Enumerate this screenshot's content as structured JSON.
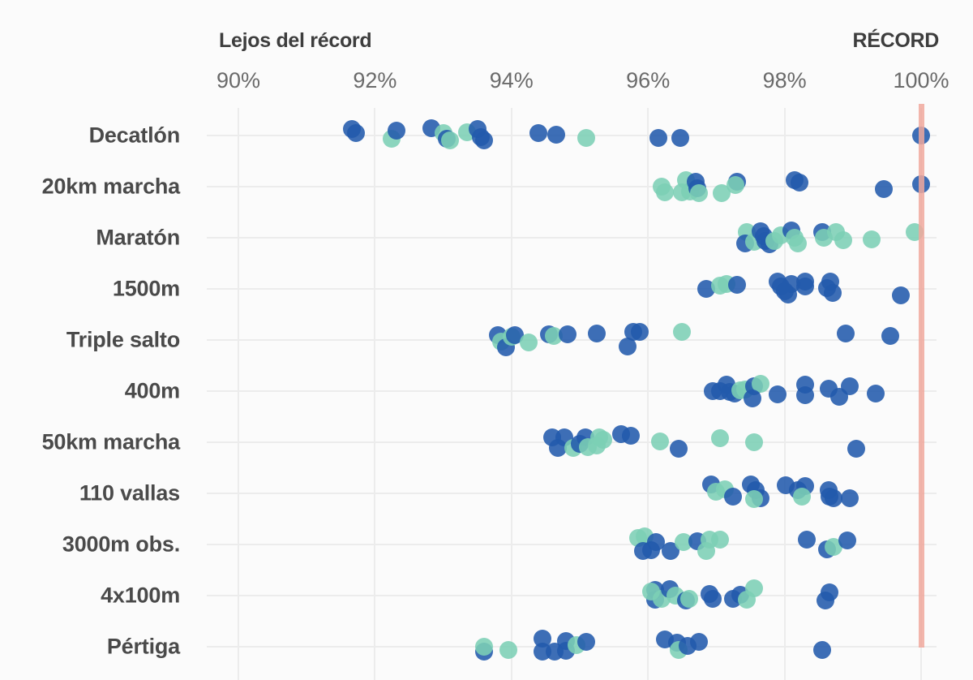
{
  "header": {
    "left_label": "Lejos del récord",
    "right_label": "RÉCORD"
  },
  "colors": {
    "series_dark": "#225aac",
    "series_light": "#7ccfb5",
    "record_line": "#f0a89c",
    "grid": "#ececec",
    "background": "#fbfbfb"
  },
  "chart_data": {
    "type": "scatter",
    "title": "",
    "xlabel": "",
    "ylabel": "",
    "xlim": [
      89.5,
      100.2
    ],
    "x_ticks": [
      {
        "value": 90,
        "label": "90%"
      },
      {
        "value": 92,
        "label": "92%"
      },
      {
        "value": 94,
        "label": "94%"
      },
      {
        "value": 96,
        "label": "96%"
      },
      {
        "value": 98,
        "label": "98%"
      },
      {
        "value": 100,
        "label": "100%"
      }
    ],
    "annotations": [
      {
        "text": "Lejos del récord",
        "position": "top-left"
      },
      {
        "text": "RÉCORD",
        "position": "top-right",
        "x": 100
      }
    ],
    "reference_line": {
      "x": 100,
      "label": "RÉCORD"
    },
    "grid": true,
    "legend": "none",
    "series_names": [
      "dark",
      "light"
    ],
    "categories": [
      "Decatlón",
      "20km marcha",
      "Maratón",
      "1500m",
      "Triple salto",
      "400m",
      "50km marcha",
      "110 vallas",
      "3000m obs.",
      "4x100m",
      "Pértiga"
    ],
    "rows": [
      {
        "label": "Decatlón",
        "points": [
          {
            "pct": 91.66,
            "dy": -8,
            "s": "dark"
          },
          {
            "pct": 91.72,
            "dy": -3,
            "s": "dark"
          },
          {
            "pct": 92.25,
            "dy": 4,
            "s": "light"
          },
          {
            "pct": 92.32,
            "dy": -6,
            "s": "dark"
          },
          {
            "pct": 92.83,
            "dy": -9,
            "s": "dark"
          },
          {
            "pct": 93.0,
            "dy": -3,
            "s": "light"
          },
          {
            "pct": 93.05,
            "dy": 4,
            "s": "dark"
          },
          {
            "pct": 93.1,
            "dy": 6,
            "s": "light"
          },
          {
            "pct": 93.35,
            "dy": -4,
            "s": "light"
          },
          {
            "pct": 93.5,
            "dy": -8,
            "s": "dark"
          },
          {
            "pct": 93.55,
            "dy": 2,
            "s": "dark"
          },
          {
            "pct": 93.6,
            "dy": 6,
            "s": "dark"
          },
          {
            "pct": 94.4,
            "dy": -3,
            "s": "dark"
          },
          {
            "pct": 94.65,
            "dy": -1,
            "s": "dark"
          },
          {
            "pct": 95.1,
            "dy": 3,
            "s": "light"
          },
          {
            "pct": 96.15,
            "dy": 3,
            "s": "dark"
          },
          {
            "pct": 96.47,
            "dy": 3,
            "s": "dark"
          },
          {
            "pct": 100.0,
            "dy": 0,
            "s": "dark"
          }
        ]
      },
      {
        "label": "20km marcha",
        "points": [
          {
            "pct": 96.2,
            "dy": 0,
            "s": "light"
          },
          {
            "pct": 96.25,
            "dy": 7,
            "s": "light"
          },
          {
            "pct": 96.5,
            "dy": 7,
            "s": "light"
          },
          {
            "pct": 96.55,
            "dy": -8,
            "s": "light"
          },
          {
            "pct": 96.62,
            "dy": 6,
            "s": "light"
          },
          {
            "pct": 96.7,
            "dy": -6,
            "s": "dark"
          },
          {
            "pct": 96.72,
            "dy": 2,
            "s": "dark"
          },
          {
            "pct": 96.75,
            "dy": 8,
            "s": "light"
          },
          {
            "pct": 97.08,
            "dy": 8,
            "s": "light"
          },
          {
            "pct": 97.3,
            "dy": -6,
            "s": "dark"
          },
          {
            "pct": 97.28,
            "dy": -2,
            "s": "light"
          },
          {
            "pct": 98.15,
            "dy": -8,
            "s": "dark"
          },
          {
            "pct": 98.22,
            "dy": -5,
            "s": "dark"
          },
          {
            "pct": 99.45,
            "dy": 3,
            "s": "dark"
          },
          {
            "pct": 100.0,
            "dy": -3,
            "s": "dark"
          }
        ]
      },
      {
        "label": "Maratón",
        "points": [
          {
            "pct": 97.45,
            "dy": -7,
            "s": "light"
          },
          {
            "pct": 97.42,
            "dy": 7,
            "s": "dark"
          },
          {
            "pct": 97.55,
            "dy": 5,
            "s": "light"
          },
          {
            "pct": 97.65,
            "dy": -8,
            "s": "dark"
          },
          {
            "pct": 97.7,
            "dy": -2,
            "s": "dark"
          },
          {
            "pct": 97.72,
            "dy": 4,
            "s": "dark"
          },
          {
            "pct": 97.78,
            "dy": 8,
            "s": "dark"
          },
          {
            "pct": 97.85,
            "dy": 4,
            "s": "light"
          },
          {
            "pct": 97.95,
            "dy": -3,
            "s": "light"
          },
          {
            "pct": 98.1,
            "dy": -9,
            "s": "dark"
          },
          {
            "pct": 98.15,
            "dy": 0,
            "s": "light"
          },
          {
            "pct": 98.2,
            "dy": 7,
            "s": "light"
          },
          {
            "pct": 98.55,
            "dy": -7,
            "s": "dark"
          },
          {
            "pct": 98.58,
            "dy": 0,
            "s": "light"
          },
          {
            "pct": 98.75,
            "dy": -7,
            "s": "light"
          },
          {
            "pct": 98.86,
            "dy": 3,
            "s": "light"
          },
          {
            "pct": 99.28,
            "dy": 2,
            "s": "light"
          },
          {
            "pct": 99.9,
            "dy": -7,
            "s": "light"
          }
        ]
      },
      {
        "label": "1500m",
        "points": [
          {
            "pct": 96.85,
            "dy": 0,
            "s": "dark"
          },
          {
            "pct": 97.05,
            "dy": -4,
            "s": "light"
          },
          {
            "pct": 97.15,
            "dy": -6,
            "s": "light"
          },
          {
            "pct": 97.3,
            "dy": -5,
            "s": "dark"
          },
          {
            "pct": 97.9,
            "dy": -9,
            "s": "dark"
          },
          {
            "pct": 97.95,
            "dy": -3,
            "s": "dark"
          },
          {
            "pct": 98.0,
            "dy": 3,
            "s": "dark"
          },
          {
            "pct": 98.05,
            "dy": 7,
            "s": "dark"
          },
          {
            "pct": 98.1,
            "dy": -6,
            "s": "dark"
          },
          {
            "pct": 98.3,
            "dy": -9,
            "s": "dark"
          },
          {
            "pct": 98.3,
            "dy": -3,
            "s": "dark"
          },
          {
            "pct": 98.62,
            "dy": -1,
            "s": "dark"
          },
          {
            "pct": 98.67,
            "dy": -9,
            "s": "dark"
          },
          {
            "pct": 98.7,
            "dy": 5,
            "s": "dark"
          },
          {
            "pct": 99.7,
            "dy": 8,
            "s": "dark"
          }
        ]
      },
      {
        "label": "Triple salto",
        "points": [
          {
            "pct": 93.8,
            "dy": -6,
            "s": "dark"
          },
          {
            "pct": 93.85,
            "dy": 2,
            "s": "light"
          },
          {
            "pct": 93.92,
            "dy": 9,
            "s": "dark"
          },
          {
            "pct": 94.0,
            "dy": -4,
            "s": "light"
          },
          {
            "pct": 94.05,
            "dy": -6,
            "s": "dark"
          },
          {
            "pct": 94.25,
            "dy": 3,
            "s": "light"
          },
          {
            "pct": 94.55,
            "dy": -7,
            "s": "dark"
          },
          {
            "pct": 94.62,
            "dy": -5,
            "s": "light"
          },
          {
            "pct": 94.82,
            "dy": -7,
            "s": "dark"
          },
          {
            "pct": 95.25,
            "dy": -8,
            "s": "dark"
          },
          {
            "pct": 95.7,
            "dy": 8,
            "s": "dark"
          },
          {
            "pct": 95.78,
            "dy": -10,
            "s": "dark"
          },
          {
            "pct": 95.88,
            "dy": -10,
            "s": "dark"
          },
          {
            "pct": 96.5,
            "dy": -10,
            "s": "light"
          },
          {
            "pct": 98.9,
            "dy": -8,
            "s": "dark"
          },
          {
            "pct": 99.55,
            "dy": -5,
            "s": "dark"
          }
        ]
      },
      {
        "label": "400m",
        "points": [
          {
            "pct": 96.95,
            "dy": 0,
            "s": "dark"
          },
          {
            "pct": 97.05,
            "dy": 0,
            "s": "dark"
          },
          {
            "pct": 97.15,
            "dy": -8,
            "s": "dark"
          },
          {
            "pct": 97.2,
            "dy": 1,
            "s": "dark"
          },
          {
            "pct": 97.27,
            "dy": 3,
            "s": "dark"
          },
          {
            "pct": 97.35,
            "dy": -1,
            "s": "light"
          },
          {
            "pct": 97.42,
            "dy": -2,
            "s": "light"
          },
          {
            "pct": 97.55,
            "dy": -6,
            "s": "dark"
          },
          {
            "pct": 97.65,
            "dy": -9,
            "s": "light"
          },
          {
            "pct": 97.53,
            "dy": 9,
            "s": "dark"
          },
          {
            "pct": 97.9,
            "dy": 4,
            "s": "dark"
          },
          {
            "pct": 98.3,
            "dy": -8,
            "s": "dark"
          },
          {
            "pct": 98.3,
            "dy": 5,
            "s": "dark"
          },
          {
            "pct": 98.65,
            "dy": -3,
            "s": "dark"
          },
          {
            "pct": 98.8,
            "dy": 7,
            "s": "dark"
          },
          {
            "pct": 98.95,
            "dy": -6,
            "s": "dark"
          },
          {
            "pct": 99.33,
            "dy": 3,
            "s": "dark"
          }
        ]
      },
      {
        "label": "50km marcha",
        "points": [
          {
            "pct": 94.6,
            "dy": -6,
            "s": "dark"
          },
          {
            "pct": 94.68,
            "dy": 7,
            "s": "dark"
          },
          {
            "pct": 94.78,
            "dy": -6,
            "s": "dark"
          },
          {
            "pct": 94.9,
            "dy": 7,
            "s": "light"
          },
          {
            "pct": 95.0,
            "dy": 2,
            "s": "dark"
          },
          {
            "pct": 95.08,
            "dy": -6,
            "s": "dark"
          },
          {
            "pct": 95.12,
            "dy": 6,
            "s": "light"
          },
          {
            "pct": 95.25,
            "dy": 4,
            "s": "light"
          },
          {
            "pct": 95.28,
            "dy": -6,
            "s": "light"
          },
          {
            "pct": 95.35,
            "dy": -3,
            "s": "light"
          },
          {
            "pct": 95.6,
            "dy": -10,
            "s": "dark"
          },
          {
            "pct": 95.75,
            "dy": -8,
            "s": "dark"
          },
          {
            "pct": 96.17,
            "dy": -1,
            "s": "light"
          },
          {
            "pct": 96.45,
            "dy": 8,
            "s": "dark"
          },
          {
            "pct": 97.05,
            "dy": -5,
            "s": "light"
          },
          {
            "pct": 97.55,
            "dy": 0,
            "s": "light"
          },
          {
            "pct": 99.05,
            "dy": 8,
            "s": "dark"
          }
        ]
      },
      {
        "label": "110 vallas",
        "points": [
          {
            "pct": 96.92,
            "dy": -11,
            "s": "dark"
          },
          {
            "pct": 97.0,
            "dy": -2,
            "s": "light"
          },
          {
            "pct": 97.12,
            "dy": -5,
            "s": "light"
          },
          {
            "pct": 97.25,
            "dy": 4,
            "s": "dark"
          },
          {
            "pct": 97.5,
            "dy": -11,
            "s": "dark"
          },
          {
            "pct": 97.58,
            "dy": -4,
            "s": "dark"
          },
          {
            "pct": 97.65,
            "dy": 6,
            "s": "dark"
          },
          {
            "pct": 97.55,
            "dy": 7,
            "s": "light"
          },
          {
            "pct": 98.02,
            "dy": -10,
            "s": "dark"
          },
          {
            "pct": 98.2,
            "dy": -4,
            "s": "dark"
          },
          {
            "pct": 98.3,
            "dy": -9,
            "s": "dark"
          },
          {
            "pct": 98.25,
            "dy": 4,
            "s": "light"
          },
          {
            "pct": 98.65,
            "dy": -4,
            "s": "dark"
          },
          {
            "pct": 98.66,
            "dy": 4,
            "s": "dark"
          },
          {
            "pct": 98.72,
            "dy": 6,
            "s": "dark"
          },
          {
            "pct": 98.95,
            "dy": 6,
            "s": "dark"
          }
        ]
      },
      {
        "label": "3000m obs.",
        "points": [
          {
            "pct": 95.85,
            "dy": -8,
            "s": "light"
          },
          {
            "pct": 95.95,
            "dy": -10,
            "s": "light"
          },
          {
            "pct": 95.93,
            "dy": 8,
            "s": "dark"
          },
          {
            "pct": 96.05,
            "dy": 7,
            "s": "dark"
          },
          {
            "pct": 96.12,
            "dy": -3,
            "s": "dark"
          },
          {
            "pct": 96.33,
            "dy": 8,
            "s": "dark"
          },
          {
            "pct": 96.52,
            "dy": -3,
            "s": "light"
          },
          {
            "pct": 96.72,
            "dy": -4,
            "s": "dark"
          },
          {
            "pct": 96.9,
            "dy": -6,
            "s": "light"
          },
          {
            "pct": 96.85,
            "dy": 8,
            "s": "light"
          },
          {
            "pct": 97.05,
            "dy": -6,
            "s": "light"
          },
          {
            "pct": 98.33,
            "dy": -6,
            "s": "dark"
          },
          {
            "pct": 98.62,
            "dy": 6,
            "s": "dark"
          },
          {
            "pct": 98.72,
            "dy": 3,
            "s": "light"
          },
          {
            "pct": 98.92,
            "dy": -5,
            "s": "dark"
          }
        ]
      },
      {
        "label": "4x100m",
        "points": [
          {
            "pct": 96.1,
            "dy": -7,
            "s": "dark"
          },
          {
            "pct": 96.1,
            "dy": 5,
            "s": "dark"
          },
          {
            "pct": 96.05,
            "dy": -5,
            "s": "light"
          },
          {
            "pct": 96.2,
            "dy": 4,
            "s": "light"
          },
          {
            "pct": 96.32,
            "dy": -8,
            "s": "dark"
          },
          {
            "pct": 96.4,
            "dy": 0,
            "s": "light"
          },
          {
            "pct": 96.55,
            "dy": 6,
            "s": "dark"
          },
          {
            "pct": 96.6,
            "dy": 4,
            "s": "light"
          },
          {
            "pct": 96.9,
            "dy": -2,
            "s": "dark"
          },
          {
            "pct": 96.95,
            "dy": 4,
            "s": "dark"
          },
          {
            "pct": 97.25,
            "dy": 4,
            "s": "dark"
          },
          {
            "pct": 97.35,
            "dy": -1,
            "s": "dark"
          },
          {
            "pct": 97.45,
            "dy": 5,
            "s": "light"
          },
          {
            "pct": 97.55,
            "dy": -9,
            "s": "light"
          },
          {
            "pct": 98.6,
            "dy": 6,
            "s": "dark"
          },
          {
            "pct": 98.66,
            "dy": -4,
            "s": "dark"
          }
        ]
      },
      {
        "label": "Pértiga",
        "points": [
          {
            "pct": 93.6,
            "dy": 6,
            "s": "dark"
          },
          {
            "pct": 93.6,
            "dy": 0,
            "s": "light"
          },
          {
            "pct": 93.96,
            "dy": 4,
            "s": "light"
          },
          {
            "pct": 94.45,
            "dy": -10,
            "s": "dark"
          },
          {
            "pct": 94.45,
            "dy": 6,
            "s": "dark"
          },
          {
            "pct": 94.63,
            "dy": 6,
            "s": "dark"
          },
          {
            "pct": 94.8,
            "dy": -7,
            "s": "dark"
          },
          {
            "pct": 94.8,
            "dy": 5,
            "s": "dark"
          },
          {
            "pct": 94.95,
            "dy": -2,
            "s": "light"
          },
          {
            "pct": 95.1,
            "dy": -6,
            "s": "dark"
          },
          {
            "pct": 96.25,
            "dy": -9,
            "s": "dark"
          },
          {
            "pct": 96.43,
            "dy": -5,
            "s": "dark"
          },
          {
            "pct": 96.45,
            "dy": 4,
            "s": "light"
          },
          {
            "pct": 96.58,
            "dy": -1,
            "s": "dark"
          },
          {
            "pct": 96.75,
            "dy": -6,
            "s": "dark"
          },
          {
            "pct": 98.55,
            "dy": 4,
            "s": "dark"
          }
        ]
      }
    ]
  }
}
